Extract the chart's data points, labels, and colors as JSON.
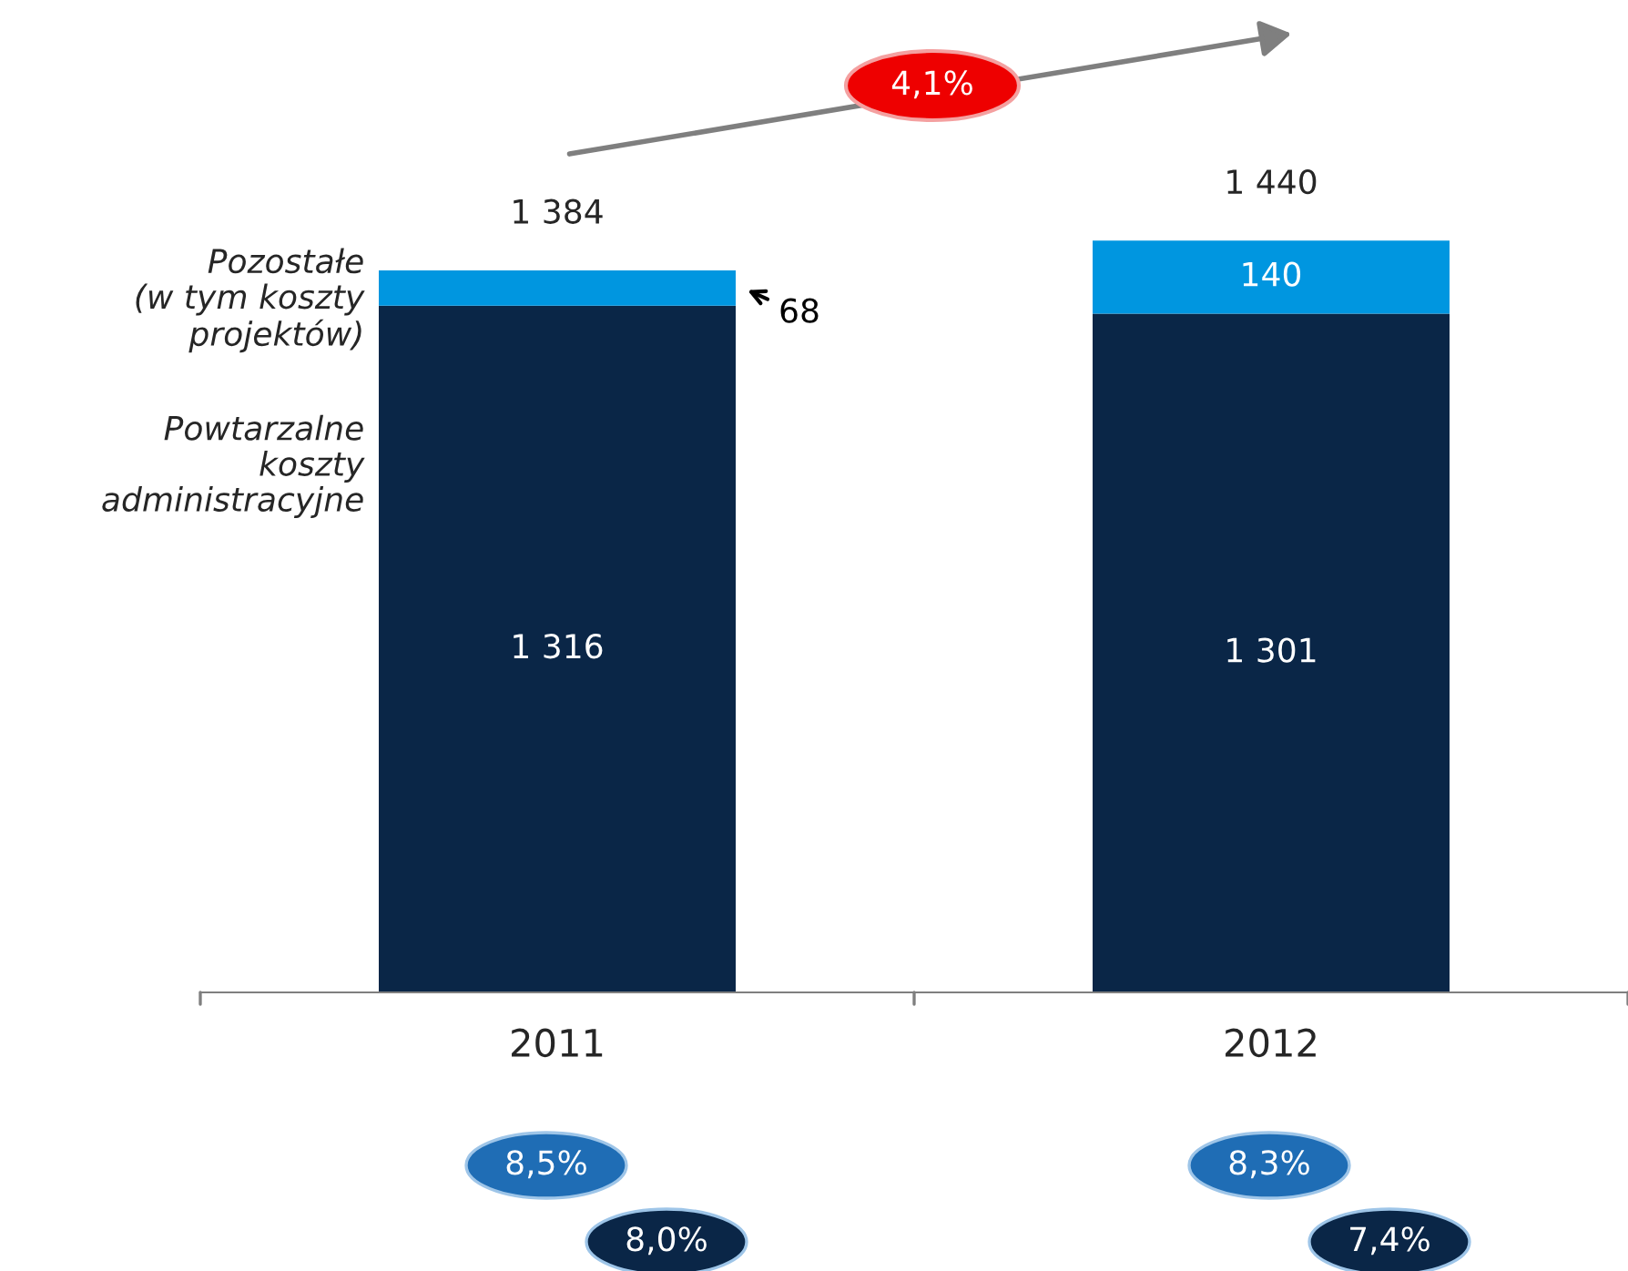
{
  "chart_data": {
    "type": "bar",
    "stacked": true,
    "categories": [
      "2011",
      "2012"
    ],
    "series": [
      {
        "name": "Powtarzalne koszty administracyjne",
        "color": "#0a2647",
        "values": [
          1316,
          1301
        ],
        "value_labels": [
          "1 316",
          "1 301"
        ]
      },
      {
        "name": "Pozostałe (w tym koszty projektów)",
        "color": "#0096e0",
        "values": [
          68,
          140
        ],
        "value_labels": [
          "68",
          "140"
        ]
      }
    ],
    "totals": [
      "1 384",
      "1 440"
    ],
    "annotations": [
      "4,1%",
      "8,5%",
      "8,0%",
      "8,3%",
      "7,4%"
    ],
    "legend": "left"
  }
}
